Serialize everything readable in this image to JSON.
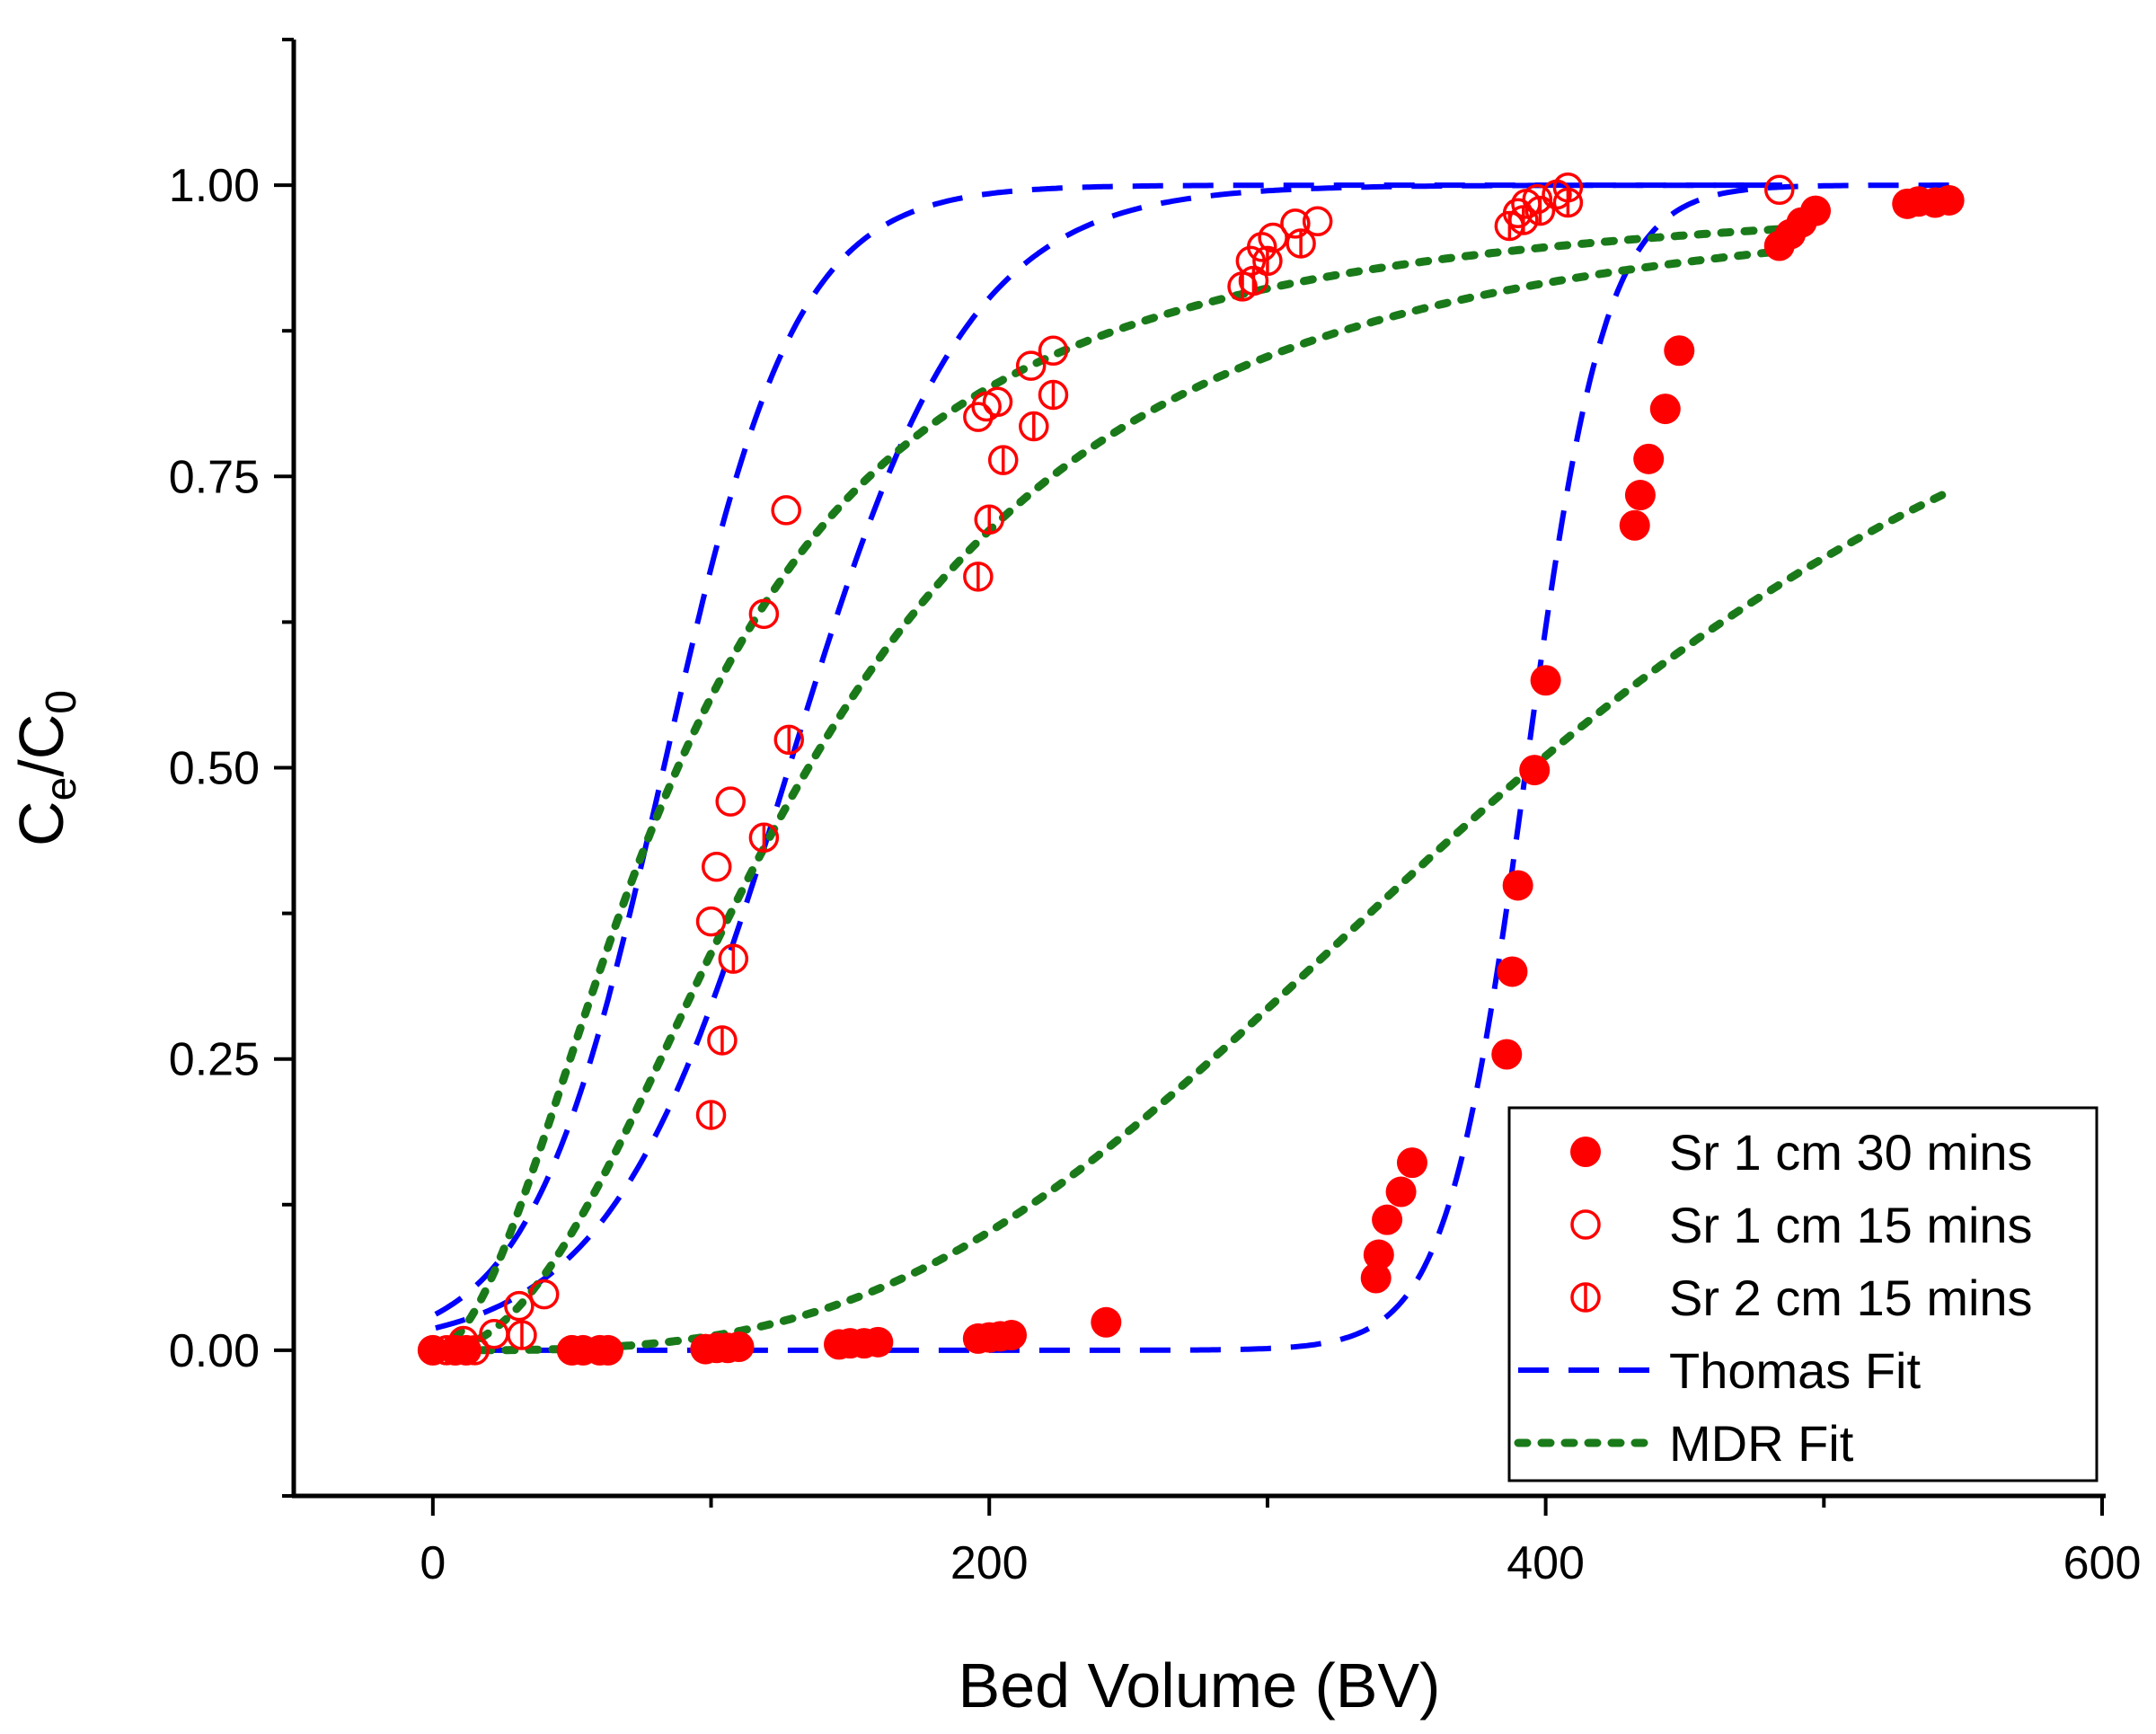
{
  "chart_data": {
    "type": "scatter",
    "title": "",
    "xlabel": "Bed Volume (BV)",
    "ylabel": {
      "main": "C",
      "sub1": "e",
      "slash": "/C",
      "sub2": "0"
    },
    "xlim": [
      -50,
      600
    ],
    "ylim": [
      -0.125,
      1.125
    ],
    "x_ticks": [
      0,
      200,
      400,
      600
    ],
    "x_tick_labels": [
      "0",
      "200",
      "400",
      "600"
    ],
    "y_ticks": [
      0.0,
      0.25,
      0.5,
      0.75,
      1.0
    ],
    "y_tick_labels": [
      "0.00",
      "0.25",
      "0.50",
      "0.75",
      "1.00"
    ],
    "grid": false,
    "legend_position": "bottom-right",
    "colors": {
      "red": "#ff0000",
      "blue": "#0000ff",
      "green": "#1a7a1a",
      "axis": "#000000"
    },
    "series": [
      {
        "name": "Sr 1 cm 30 mins",
        "kind": "points",
        "marker": "filled-circle",
        "color": "#ff0000",
        "points": [
          [
            0,
            0.0
          ],
          [
            8,
            0.0
          ],
          [
            12,
            0.0
          ],
          [
            50,
            0.0
          ],
          [
            54,
            0.0
          ],
          [
            60,
            0.0
          ],
          [
            63,
            0.0
          ],
          [
            98,
            0.001
          ],
          [
            102,
            0.002
          ],
          [
            106,
            0.002
          ],
          [
            110,
            0.003
          ],
          [
            146,
            0.005
          ],
          [
            150,
            0.006
          ],
          [
            155,
            0.006
          ],
          [
            160,
            0.007
          ],
          [
            196,
            0.01
          ],
          [
            200,
            0.011
          ],
          [
            204,
            0.012
          ],
          [
            208,
            0.013
          ],
          [
            242,
            0.024
          ],
          [
            339,
            0.062
          ],
          [
            340,
            0.082
          ],
          [
            343,
            0.112
          ],
          [
            348,
            0.136
          ],
          [
            352,
            0.161
          ],
          [
            386,
            0.254
          ],
          [
            388,
            0.325
          ],
          [
            390,
            0.399
          ],
          [
            396,
            0.498
          ],
          [
            400,
            0.575
          ],
          [
            432,
            0.708
          ],
          [
            434,
            0.734
          ],
          [
            437,
            0.765
          ],
          [
            443,
            0.808
          ],
          [
            448,
            0.858
          ],
          [
            484,
            0.948
          ],
          [
            488,
            0.958
          ],
          [
            492,
            0.968
          ],
          [
            497,
            0.978
          ],
          [
            530,
            0.984
          ],
          [
            534,
            0.986
          ],
          [
            540,
            0.985
          ],
          [
            545,
            0.987
          ]
        ]
      },
      {
        "name": "Sr 1 cm 15 mins",
        "kind": "points",
        "marker": "open-circle",
        "color": "#ff0000",
        "points": [
          [
            0,
            0.0
          ],
          [
            5,
            0.0
          ],
          [
            11,
            0.008
          ],
          [
            22,
            0.014
          ],
          [
            31,
            0.038
          ],
          [
            40,
            0.048
          ],
          [
            100,
            0.368
          ],
          [
            102,
            0.415
          ],
          [
            107,
            0.471
          ],
          [
            119,
            0.632
          ],
          [
            127,
            0.721
          ],
          [
            196,
            0.801
          ],
          [
            199,
            0.81
          ],
          [
            203,
            0.814
          ],
          [
            215,
            0.845
          ],
          [
            223,
            0.858
          ],
          [
            294,
            0.935
          ],
          [
            298,
            0.947
          ],
          [
            302,
            0.955
          ],
          [
            310,
            0.967
          ],
          [
            318,
            0.969
          ],
          [
            390,
            0.976
          ],
          [
            393,
            0.984
          ],
          [
            397,
            0.988
          ],
          [
            404,
            0.992
          ],
          [
            408,
            0.998
          ],
          [
            484,
            0.996
          ]
        ]
      },
      {
        "name": "Sr 2 cm 15 mins",
        "kind": "points",
        "marker": "barred-circle",
        "color": "#ff0000",
        "points": [
          [
            5,
            0.0
          ],
          [
            15,
            0.0
          ],
          [
            32,
            0.013
          ],
          [
            100,
            0.202
          ],
          [
            104,
            0.266
          ],
          [
            108,
            0.336
          ],
          [
            119,
            0.44
          ],
          [
            128,
            0.524
          ],
          [
            196,
            0.664
          ],
          [
            200,
            0.713
          ],
          [
            205,
            0.764
          ],
          [
            216,
            0.793
          ],
          [
            223,
            0.82
          ],
          [
            291,
            0.913
          ],
          [
            295,
            0.918
          ],
          [
            300,
            0.935
          ],
          [
            312,
            0.95
          ],
          [
            387,
            0.965
          ],
          [
            392,
            0.97
          ],
          [
            398,
            0.978
          ],
          [
            408,
            0.985
          ]
        ]
      },
      {
        "name": "Thomas Fit",
        "kind": "line",
        "dash": "dashed",
        "color": "#0000ff",
        "curves": [
          {
            "model": "thomas",
            "x0": 83,
            "k": 0.042,
            "xmin": 1,
            "xmax": 485
          },
          {
            "model": "thomas",
            "x0": 128,
            "k": 0.031,
            "xmin": 1,
            "xmax": 485
          },
          {
            "model": "thomas",
            "x0": 393,
            "k": 0.07,
            "xmin": 1,
            "xmax": 545
          }
        ]
      },
      {
        "name": "MDR Fit",
        "kind": "line",
        "dash": "dotted",
        "color": "#1a7a1a",
        "curves": [
          {
            "model": "mdr",
            "x0": 88,
            "k": 0.045,
            "n": 1.9,
            "xmin": 1,
            "xmax": 485
          },
          {
            "model": "mdr",
            "x0": 135,
            "k": 0.035,
            "n": 2.2,
            "xmin": 1,
            "xmax": 485
          },
          {
            "model": "mdr",
            "x0": 395,
            "k": 0.068,
            "n": 3.2,
            "xmin": 1,
            "xmax": 545
          }
        ]
      }
    ]
  }
}
